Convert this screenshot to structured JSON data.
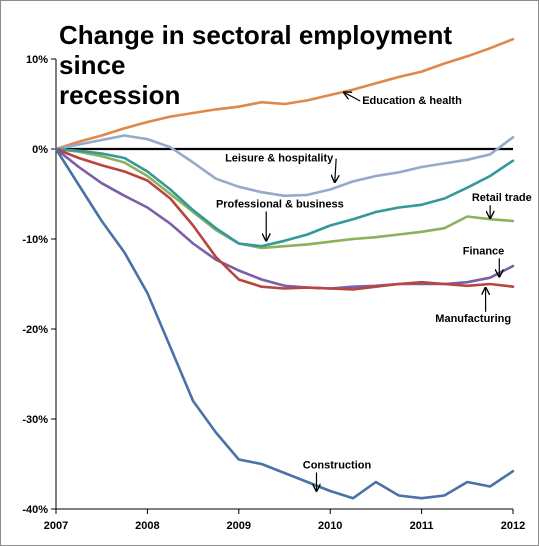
{
  "chart_data": {
    "type": "line",
    "title_lines": [
      "Change in sectoral employment",
      "since",
      "recession"
    ],
    "xlabel": "",
    "ylabel": "",
    "x_ticks": [
      "2007",
      "2008",
      "2009",
      "2010",
      "2011",
      "2012"
    ],
    "y_ticks": [
      {
        "value": 10,
        "label": "10%"
      },
      {
        "value": 0,
        "label": "0%"
      },
      {
        "value": -10,
        "label": "-10%"
      },
      {
        "value": -20,
        "label": "-20%"
      },
      {
        "value": -30,
        "label": "-30%"
      },
      {
        "value": -40,
        "label": "-40%"
      }
    ],
    "xlim": [
      2007.0,
      2012.0
    ],
    "ylim": [
      -40,
      10
    ],
    "grid": false,
    "legend": "none",
    "series": [
      {
        "name": "Education & health",
        "color": "#e0874a",
        "x": [
          2007.0,
          2007.25,
          2007.5,
          2007.75,
          2008.0,
          2008.25,
          2008.5,
          2008.75,
          2009.0,
          2009.25,
          2009.5,
          2009.75,
          2010.0,
          2010.25,
          2010.5,
          2010.75,
          2011.0,
          2011.25,
          2011.5,
          2011.75,
          2012.0
        ],
        "values": [
          0,
          0.8,
          1.5,
          2.3,
          3.0,
          3.6,
          4.0,
          4.4,
          4.7,
          5.2,
          5.0,
          5.4,
          6.0,
          6.6,
          7.3,
          8.0,
          8.6,
          9.5,
          10.3,
          11.2,
          12.2
        ]
      },
      {
        "name": "Leisure & hospitality",
        "color": "#95a9c9",
        "x": [
          2007.0,
          2007.25,
          2007.5,
          2007.75,
          2008.0,
          2008.25,
          2008.5,
          2008.75,
          2009.0,
          2009.25,
          2009.5,
          2009.75,
          2010.0,
          2010.25,
          2010.5,
          2010.75,
          2011.0,
          2011.25,
          2011.5,
          2011.75,
          2012.0
        ],
        "values": [
          0,
          0.5,
          1.0,
          1.5,
          1.1,
          0.2,
          -1.5,
          -3.3,
          -4.2,
          -4.8,
          -5.2,
          -5.1,
          -4.5,
          -3.6,
          -3.0,
          -2.6,
          -2.0,
          -1.6,
          -1.2,
          -0.6,
          1.3
        ]
      },
      {
        "name": "Retail trade",
        "color": "#8fb05a",
        "x": [
          2007.0,
          2007.25,
          2007.5,
          2007.75,
          2008.0,
          2008.25,
          2008.5,
          2008.75,
          2009.0,
          2009.25,
          2009.5,
          2009.75,
          2010.0,
          2010.25,
          2010.5,
          2010.75,
          2011.0,
          2011.25,
          2011.5,
          2011.75,
          2012.0
        ],
        "values": [
          0,
          -0.3,
          -0.8,
          -1.5,
          -3.0,
          -5.0,
          -7.0,
          -9.0,
          -10.5,
          -11.0,
          -10.8,
          -10.6,
          -10.3,
          -10.0,
          -9.8,
          -9.5,
          -9.2,
          -8.8,
          -7.5,
          -7.8,
          -8.0
        ]
      },
      {
        "name": "Professional & business",
        "color": "#33999a",
        "x": [
          2007.0,
          2007.25,
          2007.5,
          2007.75,
          2008.0,
          2008.25,
          2008.5,
          2008.75,
          2009.0,
          2009.25,
          2009.5,
          2009.75,
          2010.0,
          2010.25,
          2010.5,
          2010.75,
          2011.0,
          2011.25,
          2011.5,
          2011.75,
          2012.0
        ],
        "values": [
          0,
          -0.2,
          -0.5,
          -1.0,
          -2.5,
          -4.5,
          -6.8,
          -8.8,
          -10.5,
          -10.8,
          -10.2,
          -9.5,
          -8.5,
          -7.8,
          -7.0,
          -6.5,
          -6.2,
          -5.5,
          -4.3,
          -3.0,
          -1.3
        ]
      },
      {
        "name": "Finance",
        "color": "#7b5ea7",
        "x": [
          2007.0,
          2007.25,
          2007.5,
          2007.75,
          2008.0,
          2008.25,
          2008.5,
          2008.75,
          2009.0,
          2009.25,
          2009.5,
          2009.75,
          2010.0,
          2010.25,
          2010.5,
          2010.75,
          2011.0,
          2011.25,
          2011.5,
          2011.75,
          2012.0
        ],
        "values": [
          0,
          -2.0,
          -3.8,
          -5.2,
          -6.5,
          -8.3,
          -10.5,
          -12.3,
          -13.5,
          -14.5,
          -15.2,
          -15.4,
          -15.5,
          -15.3,
          -15.2,
          -15.0,
          -15.0,
          -15.0,
          -14.8,
          -14.3,
          -13.0
        ]
      },
      {
        "name": "Manufacturing",
        "color": "#b8453f",
        "x": [
          2007.0,
          2007.25,
          2007.5,
          2007.75,
          2008.0,
          2008.25,
          2008.5,
          2008.75,
          2009.0,
          2009.25,
          2009.5,
          2009.75,
          2010.0,
          2010.25,
          2010.5,
          2010.75,
          2011.0,
          2011.25,
          2011.5,
          2011.75,
          2012.0
        ],
        "values": [
          0,
          -1.0,
          -1.8,
          -2.5,
          -3.5,
          -5.5,
          -8.5,
          -12.0,
          -14.5,
          -15.3,
          -15.5,
          -15.4,
          -15.5,
          -15.6,
          -15.3,
          -15.0,
          -14.8,
          -15.0,
          -15.2,
          -15.0,
          -15.3
        ]
      },
      {
        "name": "Construction",
        "color": "#4a72a6",
        "x": [
          2007.0,
          2007.25,
          2007.5,
          2007.75,
          2008.0,
          2008.25,
          2008.5,
          2008.75,
          2009.0,
          2009.25,
          2009.5,
          2009.75,
          2010.0,
          2010.25,
          2010.5,
          2010.75,
          2011.0,
          2011.25,
          2011.5,
          2011.75,
          2012.0
        ],
        "values": [
          0,
          -4.0,
          -8.0,
          -11.5,
          -16.0,
          -22.0,
          -28.0,
          -31.5,
          -34.5,
          -35.0,
          -36.0,
          -37.0,
          -38.0,
          -38.8,
          -37.0,
          -38.5,
          -38.8,
          -38.5,
          -37.0,
          -37.5,
          -35.8
        ]
      }
    ],
    "annotations": [
      {
        "label": "Education & health",
        "tx": 2010.35,
        "ty": 5.0,
        "ax": 2010.15,
        "ay": 6.3
      },
      {
        "label": "Leisure & hospitality",
        "tx": 2008.85,
        "ty": -1.4,
        "ax": 2010.05,
        "ay": -3.7
      },
      {
        "label": "Professional & business",
        "tx": 2008.75,
        "ty": -6.5,
        "ax": 2009.3,
        "ay": -10.2
      },
      {
        "label": "Retail trade",
        "tx": 2011.55,
        "ty": -5.8,
        "ax": 2011.75,
        "ay": -7.7
      },
      {
        "label": "Finance",
        "tx": 2011.45,
        "ty": -11.7,
        "ax": 2011.85,
        "ay": -14.2
      },
      {
        "label": "Manufacturing",
        "tx": 2011.15,
        "ty": -19.2,
        "ax": 2011.7,
        "ay": -15.4
      },
      {
        "label": "Construction",
        "tx": 2009.7,
        "ty": -35.5,
        "ax": 2009.85,
        "ay": -38.0
      }
    ]
  }
}
